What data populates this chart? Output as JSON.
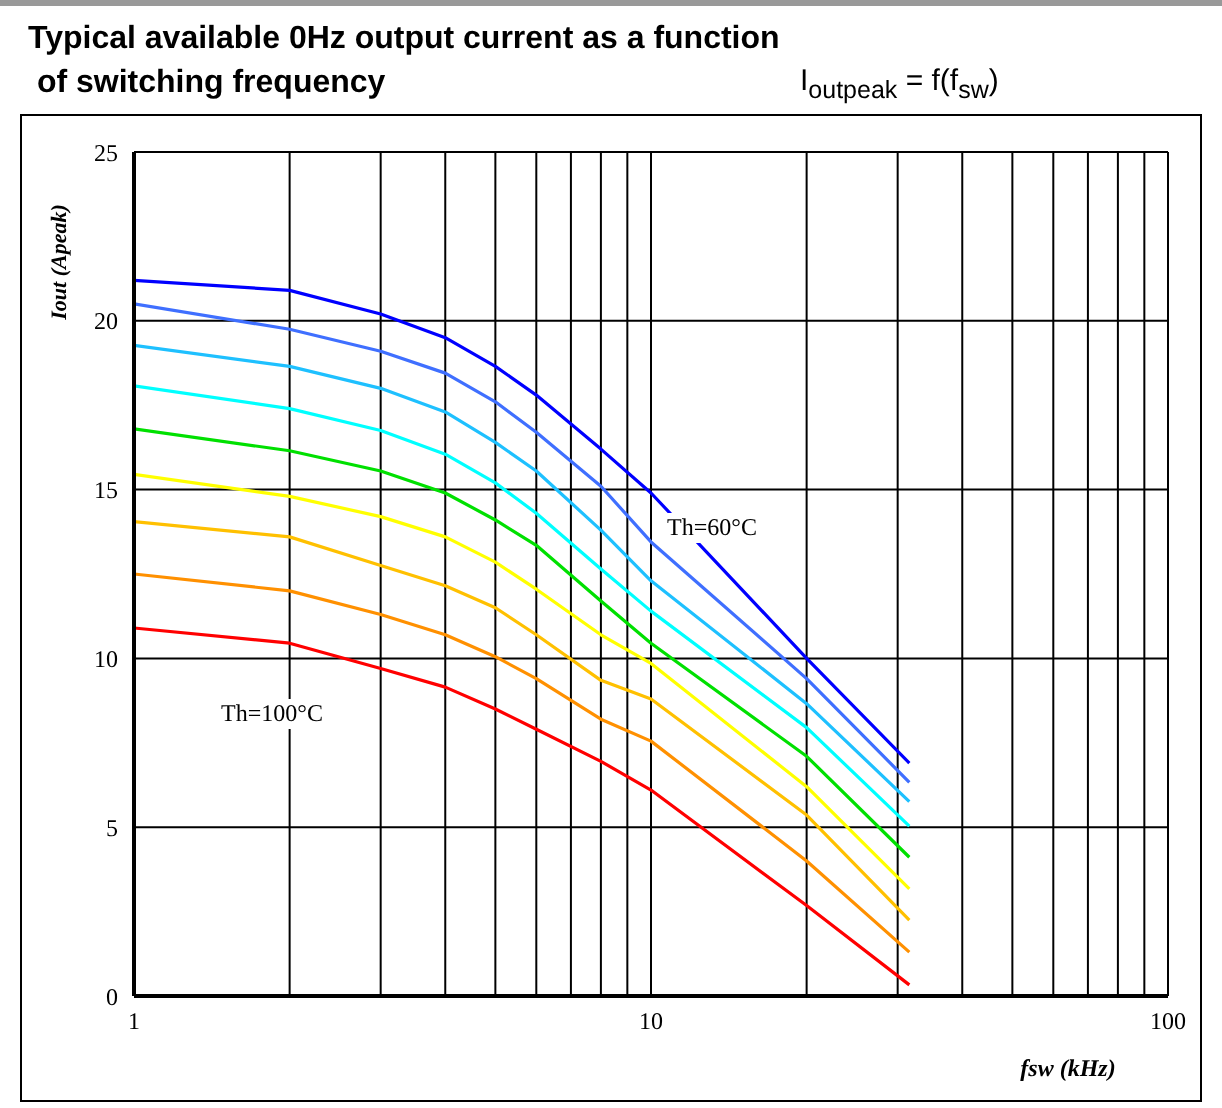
{
  "chart_data": {
    "type": "line",
    "title": "Typical available 0Hz output current as a function\n of switching frequency",
    "subtitle": "I$_{outpeak}$ = f(f$_{sw}$)",
    "xlabel": "fsw (kHz)",
    "ylabel": "Iout (Apeak)",
    "log": "x",
    "x": [
      1,
      2,
      3,
      4,
      5,
      6,
      8,
      10,
      20,
      31.6
    ],
    "series": [
      {
        "color": "#0000ff",
        "values": [
          21.2,
          20.9,
          20.2,
          19.5,
          18.65,
          17.8,
          16.2,
          14.9,
          10.0,
          6.9
        ]
      },
      {
        "color": "#3f6fff",
        "values": [
          20.5,
          19.75,
          19.1,
          18.45,
          17.6,
          16.7,
          15.1,
          13.45,
          9.4,
          6.33
        ]
      },
      {
        "color": "#1ec0ff",
        "values": [
          19.27,
          18.65,
          18.0,
          17.3,
          16.4,
          15.55,
          13.8,
          12.3,
          8.66,
          5.76
        ]
      },
      {
        "color": "#00ffff",
        "values": [
          18.07,
          17.4,
          16.75,
          16.05,
          15.2,
          14.3,
          12.65,
          11.4,
          7.95,
          5.03
        ]
      },
      {
        "color": "#00e000",
        "values": [
          16.8,
          16.15,
          15.55,
          14.9,
          14.1,
          13.35,
          11.7,
          10.45,
          7.1,
          4.11
        ]
      },
      {
        "color": "#ffff00",
        "values": [
          15.45,
          14.8,
          14.2,
          13.6,
          12.85,
          12.05,
          10.7,
          9.85,
          6.2,
          3.17
        ]
      },
      {
        "color": "#ffc000",
        "values": [
          14.05,
          13.6,
          12.75,
          12.15,
          11.5,
          10.7,
          9.35,
          8.8,
          5.36,
          2.25
        ]
      },
      {
        "color": "#ff9000",
        "values": [
          12.5,
          12.0,
          11.3,
          10.7,
          10.05,
          9.4,
          8.2,
          7.55,
          4.0,
          1.3
        ]
      },
      {
        "color": "#ff0000",
        "values": [
          10.9,
          10.45,
          9.7,
          9.15,
          8.5,
          7.9,
          6.95,
          6.1,
          2.68,
          0.33
        ]
      }
    ],
    "xlim": [
      1,
      100
    ],
    "xticks": [
      1,
      {
        "value": 2,
        "label": null
      },
      {
        "value": 3,
        "label": null
      },
      {
        "value": 4,
        "label": null
      },
      {
        "value": 5,
        "label": null
      },
      {
        "value": 6,
        "label": null
      },
      {
        "value": 7,
        "label": null
      },
      {
        "value": 8,
        "label": null
      },
      {
        "value": 9,
        "label": null
      },
      10,
      {
        "value": 20,
        "label": null
      },
      {
        "value": 30,
        "label": null
      },
      {
        "value": 40,
        "label": null
      },
      {
        "value": 50,
        "label": null
      },
      {
        "value": 60,
        "label": null
      },
      {
        "value": 70,
        "label": null
      },
      {
        "value": 80,
        "label": null
      },
      {
        "value": 90,
        "label": null
      },
      100
    ],
    "ylim": [
      0,
      25
    ],
    "yticks": [
      0,
      5,
      10,
      15,
      20,
      25
    ],
    "grid": true,
    "annotations": [
      "Th=60°C",
      "Th=100°C"
    ]
  }
}
